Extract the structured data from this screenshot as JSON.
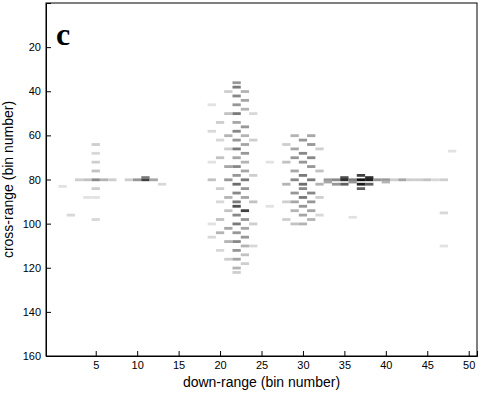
{
  "chart_data": {
    "type": "heatmap",
    "title": "c",
    "x_label": "down-range (bin number)",
    "y_label": "cross-range (bin number)",
    "xlim": [
      -1,
      51
    ],
    "ylim": [
      160,
      0
    ],
    "xticks": [
      5,
      10,
      15,
      20,
      25,
      30,
      35,
      40,
      45,
      50
    ],
    "yticks": [
      20,
      40,
      60,
      80,
      100,
      120,
      140,
      160
    ],
    "zlim": [
      0,
      1
    ],
    "cells": [
      [
        1,
        83,
        0.2
      ],
      [
        2,
        96,
        0.25
      ],
      [
        3,
        80,
        0.3
      ],
      [
        4,
        80,
        0.35
      ],
      [
        4,
        88,
        0.2
      ],
      [
        5,
        64,
        0.3
      ],
      [
        5,
        68,
        0.25
      ],
      [
        5,
        72,
        0.3
      ],
      [
        5,
        76,
        0.35
      ],
      [
        5,
        80,
        0.55
      ],
      [
        5,
        84,
        0.3
      ],
      [
        5,
        88,
        0.2
      ],
      [
        5,
        98,
        0.25
      ],
      [
        6,
        80,
        0.4
      ],
      [
        7,
        80,
        0.3
      ],
      [
        9,
        80,
        0.3
      ],
      [
        10,
        80,
        0.5
      ],
      [
        11,
        80,
        0.8
      ],
      [
        11,
        79,
        0.6
      ],
      [
        12,
        80,
        0.45
      ],
      [
        13,
        82,
        0.25
      ],
      [
        19,
        46,
        0.2
      ],
      [
        19,
        58,
        0.25
      ],
      [
        19,
        72,
        0.2
      ],
      [
        19,
        80,
        0.35
      ],
      [
        19,
        100,
        0.2
      ],
      [
        19,
        106,
        0.25
      ],
      [
        20,
        54,
        0.3
      ],
      [
        20,
        62,
        0.25
      ],
      [
        20,
        70,
        0.35
      ],
      [
        20,
        84,
        0.3
      ],
      [
        20,
        90,
        0.25
      ],
      [
        20,
        98,
        0.35
      ],
      [
        20,
        104,
        0.4
      ],
      [
        20,
        112,
        0.25
      ],
      [
        21,
        40,
        0.3
      ],
      [
        21,
        50,
        0.35
      ],
      [
        21,
        60,
        0.4
      ],
      [
        21,
        66,
        0.3
      ],
      [
        21,
        74,
        0.45
      ],
      [
        21,
        80,
        0.5
      ],
      [
        21,
        88,
        0.4
      ],
      [
        21,
        94,
        0.35
      ],
      [
        21,
        102,
        0.45
      ],
      [
        21,
        108,
        0.4
      ],
      [
        21,
        116,
        0.3
      ],
      [
        22,
        36,
        0.5
      ],
      [
        22,
        38,
        0.6
      ],
      [
        22,
        42,
        0.55
      ],
      [
        22,
        46,
        0.5
      ],
      [
        22,
        50,
        0.6
      ],
      [
        22,
        54,
        0.45
      ],
      [
        22,
        58,
        0.55
      ],
      [
        22,
        62,
        0.5
      ],
      [
        22,
        66,
        0.6
      ],
      [
        22,
        70,
        0.45
      ],
      [
        22,
        74,
        0.55
      ],
      [
        22,
        78,
        0.5
      ],
      [
        22,
        82,
        0.65
      ],
      [
        22,
        86,
        0.55
      ],
      [
        22,
        90,
        0.6
      ],
      [
        22,
        92,
        0.75
      ],
      [
        22,
        96,
        0.55
      ],
      [
        22,
        100,
        0.6
      ],
      [
        22,
        104,
        0.5
      ],
      [
        22,
        108,
        0.55
      ],
      [
        22,
        112,
        0.5
      ],
      [
        22,
        116,
        0.45
      ],
      [
        22,
        120,
        0.4
      ],
      [
        22,
        122,
        0.3
      ],
      [
        23,
        40,
        0.4
      ],
      [
        23,
        44,
        0.45
      ],
      [
        23,
        48,
        0.4
      ],
      [
        23,
        56,
        0.5
      ],
      [
        23,
        60,
        0.4
      ],
      [
        23,
        64,
        0.45
      ],
      [
        23,
        68,
        0.5
      ],
      [
        23,
        72,
        0.4
      ],
      [
        23,
        76,
        0.45
      ],
      [
        23,
        80,
        0.6
      ],
      [
        23,
        84,
        0.5
      ],
      [
        23,
        88,
        0.45
      ],
      [
        23,
        94,
        0.8
      ],
      [
        23,
        98,
        0.5
      ],
      [
        23,
        102,
        0.45
      ],
      [
        23,
        106,
        0.5
      ],
      [
        23,
        110,
        0.4
      ],
      [
        23,
        114,
        0.35
      ],
      [
        23,
        118,
        0.3
      ],
      [
        24,
        50,
        0.25
      ],
      [
        24,
        62,
        0.3
      ],
      [
        24,
        78,
        0.3
      ],
      [
        24,
        90,
        0.35
      ],
      [
        24,
        100,
        0.3
      ],
      [
        24,
        110,
        0.25
      ],
      [
        26,
        72,
        0.2
      ],
      [
        26,
        92,
        0.2
      ],
      [
        28,
        64,
        0.3
      ],
      [
        28,
        72,
        0.35
      ],
      [
        28,
        82,
        0.4
      ],
      [
        28,
        90,
        0.3
      ],
      [
        28,
        98,
        0.3
      ],
      [
        29,
        60,
        0.4
      ],
      [
        29,
        66,
        0.45
      ],
      [
        29,
        70,
        0.5
      ],
      [
        29,
        76,
        0.45
      ],
      [
        29,
        80,
        0.55
      ],
      [
        29,
        86,
        0.5
      ],
      [
        29,
        90,
        0.45
      ],
      [
        29,
        94,
        0.4
      ],
      [
        29,
        100,
        0.35
      ],
      [
        30,
        62,
        0.5
      ],
      [
        30,
        68,
        0.55
      ],
      [
        30,
        72,
        0.5
      ],
      [
        30,
        78,
        0.6
      ],
      [
        30,
        82,
        0.65
      ],
      [
        30,
        84,
        0.55
      ],
      [
        30,
        88,
        0.6
      ],
      [
        30,
        92,
        0.5
      ],
      [
        30,
        96,
        0.45
      ],
      [
        30,
        100,
        0.4
      ],
      [
        31,
        60,
        0.45
      ],
      [
        31,
        64,
        0.5
      ],
      [
        31,
        70,
        0.55
      ],
      [
        31,
        74,
        0.5
      ],
      [
        31,
        80,
        0.6
      ],
      [
        31,
        86,
        0.55
      ],
      [
        31,
        90,
        0.5
      ],
      [
        31,
        94,
        0.45
      ],
      [
        31,
        98,
        0.4
      ],
      [
        32,
        66,
        0.3
      ],
      [
        32,
        76,
        0.35
      ],
      [
        32,
        82,
        0.4
      ],
      [
        32,
        88,
        0.3
      ],
      [
        32,
        96,
        0.25
      ],
      [
        33,
        80,
        0.5
      ],
      [
        33,
        81,
        0.45
      ],
      [
        34,
        80,
        0.55
      ],
      [
        34,
        82,
        0.5
      ],
      [
        35,
        79,
        0.75
      ],
      [
        35,
        80,
        0.85
      ],
      [
        35,
        82,
        0.7
      ],
      [
        36,
        80,
        0.6
      ],
      [
        36,
        81,
        0.5
      ],
      [
        36,
        97,
        0.2
      ],
      [
        37,
        78,
        0.8
      ],
      [
        37,
        80,
        0.95
      ],
      [
        37,
        82,
        0.9
      ],
      [
        37,
        84,
        0.7
      ],
      [
        38,
        79,
        0.85
      ],
      [
        38,
        80,
        0.9
      ],
      [
        38,
        82,
        0.7
      ],
      [
        39,
        80,
        0.5
      ],
      [
        40,
        80,
        0.5
      ],
      [
        40,
        81,
        0.4
      ],
      [
        41,
        80,
        0.3
      ],
      [
        42,
        80,
        0.45
      ],
      [
        43,
        80,
        0.3
      ],
      [
        44,
        80,
        0.3
      ],
      [
        45,
        80,
        0.35
      ],
      [
        46,
        80,
        0.25
      ],
      [
        47,
        80,
        0.3
      ],
      [
        47,
        95,
        0.25
      ],
      [
        47,
        110,
        0.2
      ],
      [
        48,
        67,
        0.2
      ]
    ]
  }
}
